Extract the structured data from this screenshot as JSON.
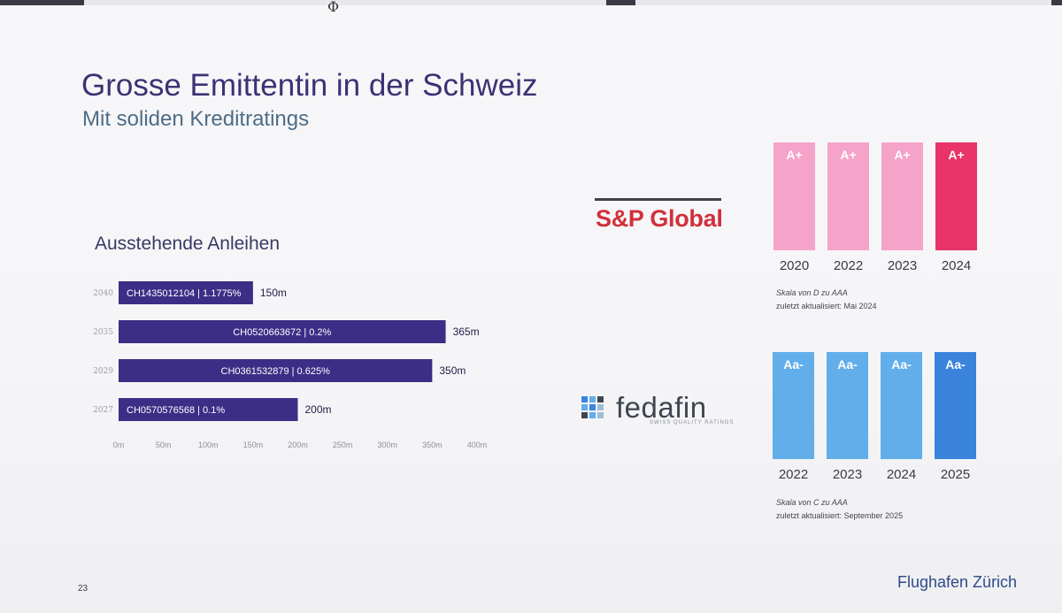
{
  "page": {
    "title": "Grosse Emittentin in der Schweiz",
    "subtitle": "Mit soliden Kreditratings",
    "page_number": "23",
    "brand": "Flughafen Zürich"
  },
  "chart_data": [
    {
      "type": "bar",
      "orientation": "horizontal",
      "title": "Ausstehende Anleihen",
      "categories": [
        "2040",
        "2035",
        "2029",
        "2027"
      ],
      "bar_labels": [
        "CH1435012104 | 1.1775%",
        "CH0520663672 | 0.2%",
        "CH0361532879 | 0.625%",
        "CH0570576568 | 0.1%"
      ],
      "values": [
        150,
        365,
        350,
        200
      ],
      "value_labels": [
        "150m",
        "365m",
        "350m",
        "200m"
      ],
      "xticks": [
        "0m",
        "50m",
        "100m",
        "150m",
        "200m",
        "250m",
        "300m",
        "350m",
        "400m"
      ],
      "xlim": [
        0,
        400
      ],
      "unit": "m",
      "bar_color": "#3c2e86"
    },
    {
      "type": "bar",
      "agency": "S&P Global",
      "categories": [
        "2020",
        "2022",
        "2023",
        "2024"
      ],
      "ratings": [
        "A+",
        "A+",
        "A+",
        "A+"
      ],
      "colors": [
        "#f5a3c9",
        "#f5a3c9",
        "#f5a3c9",
        "#e83468"
      ],
      "note_scale": "Skala von D zu AAA",
      "note_updated": "zuletzt aktualisiert: Mai 2024"
    },
    {
      "type": "bar",
      "agency": "fedafin",
      "agency_tagline": "SWISS QUALITY RATINGS",
      "categories": [
        "2022",
        "2023",
        "2024",
        "2025"
      ],
      "ratings": [
        "Aa-",
        "Aa-",
        "Aa-",
        "Aa-"
      ],
      "colors": [
        "#62aeea",
        "#62aeea",
        "#62aeea",
        "#3a84dc"
      ],
      "note_scale": "Skala von C zu AAA",
      "note_updated": "zuletzt aktualisiert: September 2025"
    }
  ]
}
